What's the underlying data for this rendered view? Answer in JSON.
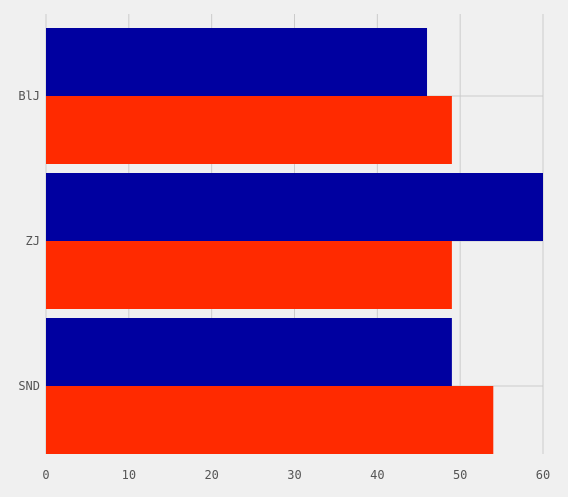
{
  "chart_data": {
    "type": "bar",
    "orientation": "horizontal",
    "categories": [
      "BlJ",
      "ZJ",
      "SND"
    ],
    "series": [
      {
        "values": [
          46,
          60,
          49
        ],
        "color": "#0000a0"
      },
      {
        "values": [
          49,
          49,
          54
        ],
        "color": "#ff2a00"
      }
    ],
    "x_ticks": [
      "0",
      "10",
      "20",
      "30",
      "40",
      "50",
      "60"
    ],
    "xlim": [
      0,
      60
    ],
    "grid": true,
    "title": "",
    "xlabel": "",
    "ylabel": ""
  }
}
